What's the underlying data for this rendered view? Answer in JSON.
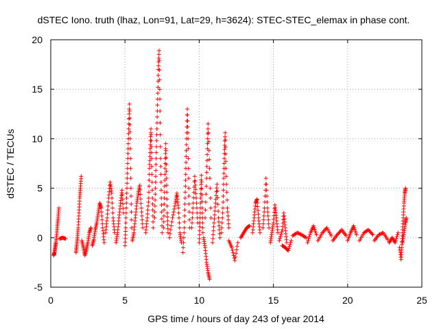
{
  "chart_data": {
    "type": "scatter",
    "title": "dSTEC Iono. truth (lhaz, Lon=91, Lat=29, h=3624): STEC-STEC_elemax in phase cont.",
    "xlabel": "GPS time / hours of day 243 of year 2014",
    "ylabel": "dSTEC  / TECUs",
    "xlim": [
      0,
      25
    ],
    "ylim": [
      -5,
      20
    ],
    "x_ticks": [
      0,
      5,
      10,
      15,
      20,
      25
    ],
    "y_ticks": [
      -5,
      0,
      5,
      10,
      15,
      20
    ],
    "x_tick_labels": [
      "0",
      "5",
      "10",
      "15",
      "20",
      "25"
    ],
    "y_tick_labels": [
      "-5",
      "0",
      "5",
      "10",
      "15",
      "20"
    ],
    "grid": true,
    "marker": "+",
    "color": "#ff0000",
    "series": [
      {
        "name": "arc01",
        "points": [
          [
            0.2,
            -1.8
          ],
          [
            0.25,
            -1.5
          ],
          [
            0.3,
            -1.0
          ],
          [
            0.35,
            -0.5
          ],
          [
            0.4,
            0.3
          ],
          [
            0.45,
            1.2
          ],
          [
            0.5,
            2.0
          ],
          [
            0.55,
            3.0
          ]
        ]
      },
      {
        "name": "arc02",
        "points": [
          [
            0.6,
            -0.1
          ],
          [
            0.8,
            0.0
          ],
          [
            1.0,
            -0.1
          ]
        ]
      },
      {
        "name": "arc03",
        "points": [
          [
            1.7,
            -1.5
          ],
          [
            1.75,
            -0.8
          ],
          [
            1.8,
            0.0
          ],
          [
            1.85,
            1.0
          ],
          [
            1.9,
            2.5
          ],
          [
            1.95,
            4.0
          ],
          [
            2.0,
            5.0
          ],
          [
            2.05,
            6.2
          ]
        ]
      },
      {
        "name": "arc04",
        "points": [
          [
            2.1,
            -0.3
          ],
          [
            2.2,
            -1.0
          ],
          [
            2.3,
            -1.8
          ],
          [
            2.4,
            -1.2
          ],
          [
            2.5,
            -0.5
          ],
          [
            2.6,
            0.5
          ],
          [
            2.7,
            1.0
          ]
        ]
      },
      {
        "name": "arc05",
        "points": [
          [
            2.8,
            -0.8
          ],
          [
            2.9,
            -0.2
          ],
          [
            3.0,
            0.8
          ],
          [
            3.1,
            1.5
          ],
          [
            3.2,
            2.5
          ],
          [
            3.3,
            3.5
          ],
          [
            3.4,
            3.0
          ],
          [
            3.5,
            1.0
          ],
          [
            3.6,
            -0.5
          ]
        ]
      },
      {
        "name": "arc06",
        "points": [
          [
            3.7,
            0.5
          ],
          [
            3.8,
            2.0
          ],
          [
            3.9,
            4.0
          ],
          [
            4.0,
            5.6
          ],
          [
            4.1,
            4.5
          ],
          [
            4.2,
            2.0
          ],
          [
            4.3,
            0.5
          ]
        ]
      },
      {
        "name": "arc07",
        "points": [
          [
            4.4,
            -0.5
          ],
          [
            4.5,
            0.5
          ],
          [
            4.6,
            2.0
          ],
          [
            4.7,
            3.5
          ],
          [
            4.8,
            4.8
          ],
          [
            4.9,
            2.5
          ]
        ]
      },
      {
        "name": "arc08",
        "points": [
          [
            5.0,
            -0.8
          ],
          [
            5.05,
            1.0
          ],
          [
            5.1,
            3.5
          ],
          [
            5.15,
            6.0
          ],
          [
            5.2,
            8.5
          ],
          [
            5.25,
            11.0
          ],
          [
            5.3,
            13.5
          ],
          [
            5.35,
            10.0
          ],
          [
            5.4,
            5.0
          ],
          [
            5.45,
            1.0
          ]
        ]
      },
      {
        "name": "arc09",
        "points": [
          [
            5.5,
            -0.3
          ],
          [
            5.6,
            0.5
          ],
          [
            5.7,
            2.0
          ],
          [
            5.8,
            3.5
          ],
          [
            5.9,
            4.5
          ],
          [
            6.0,
            5.3
          ],
          [
            6.1,
            3.0
          ],
          [
            6.2,
            1.0
          ]
        ]
      },
      {
        "name": "arc10",
        "points": [
          [
            6.4,
            0.5
          ],
          [
            6.5,
            2.0
          ],
          [
            6.6,
            4.0
          ],
          [
            6.65,
            7.0
          ],
          [
            6.7,
            9.0
          ],
          [
            6.75,
            11.0
          ],
          [
            6.8,
            8.0
          ],
          [
            6.85,
            4.0
          ],
          [
            6.9,
            1.0
          ]
        ]
      },
      {
        "name": "arc11",
        "points": [
          [
            7.0,
            2.0
          ],
          [
            7.05,
            5.0
          ],
          [
            7.1,
            8.0
          ],
          [
            7.15,
            11.0
          ],
          [
            7.2,
            14.0
          ],
          [
            7.25,
            17.0
          ],
          [
            7.3,
            18.9
          ],
          [
            7.35,
            14.0
          ],
          [
            7.4,
            8.0
          ],
          [
            7.45,
            4.0
          ],
          [
            7.5,
            0.5
          ]
        ]
      },
      {
        "name": "arc12",
        "points": [
          [
            7.6,
            1.0
          ],
          [
            7.65,
            4.0
          ],
          [
            7.7,
            7.0
          ],
          [
            7.75,
            9.5
          ],
          [
            7.8,
            6.0
          ],
          [
            7.85,
            2.5
          ],
          [
            7.9,
            0.5
          ]
        ]
      },
      {
        "name": "arc13",
        "points": [
          [
            8.0,
            0.0
          ],
          [
            8.2,
            2.0
          ],
          [
            8.4,
            3.5
          ],
          [
            8.5,
            4.5
          ],
          [
            8.6,
            3.0
          ],
          [
            8.7,
            0.5
          ],
          [
            8.8,
            -0.5
          ]
        ]
      },
      {
        "name": "arc14",
        "points": [
          [
            8.9,
            -1.5
          ],
          [
            9.0,
            1.0
          ],
          [
            9.05,
            4.0
          ],
          [
            9.1,
            7.0
          ],
          [
            9.15,
            10.0
          ],
          [
            9.2,
            13.0
          ],
          [
            9.25,
            10.0
          ],
          [
            9.3,
            5.0
          ],
          [
            9.35,
            1.0
          ]
        ]
      },
      {
        "name": "arc15",
        "points": [
          [
            9.5,
            1.0
          ],
          [
            9.6,
            3.5
          ],
          [
            9.7,
            6.2
          ],
          [
            9.8,
            4.0
          ],
          [
            9.9,
            1.5
          ]
        ]
      },
      {
        "name": "arc16",
        "points": [
          [
            10.0,
            -0.5
          ],
          [
            10.05,
            1.5
          ],
          [
            10.1,
            4.0
          ],
          [
            10.15,
            6.3
          ],
          [
            10.2,
            3.0
          ],
          [
            10.25,
            0.5
          ]
        ]
      },
      {
        "name": "arc17",
        "points": [
          [
            10.3,
            0.0
          ],
          [
            10.4,
            -1.0
          ],
          [
            10.5,
            -2.5
          ],
          [
            10.6,
            -3.5
          ],
          [
            10.7,
            -4.2
          ]
        ]
      },
      {
        "name": "arc18",
        "points": [
          [
            10.4,
            2.0
          ],
          [
            10.5,
            6.0
          ],
          [
            10.55,
            9.0
          ],
          [
            10.6,
            11.5
          ],
          [
            10.7,
            7.0
          ],
          [
            10.8,
            2.0
          ]
        ]
      },
      {
        "name": "arc19",
        "points": [
          [
            10.9,
            -0.5
          ],
          [
            11.0,
            1.5
          ],
          [
            11.1,
            3.5
          ],
          [
            11.2,
            5.4
          ],
          [
            11.3,
            2.0
          ],
          [
            11.4,
            0.0
          ]
        ]
      },
      {
        "name": "arc20",
        "points": [
          [
            11.5,
            0.5
          ],
          [
            11.6,
            3.0
          ],
          [
            11.65,
            6.0
          ],
          [
            11.7,
            8.5
          ],
          [
            11.75,
            10.6
          ],
          [
            11.8,
            7.0
          ],
          [
            11.9,
            3.0
          ],
          [
            12.0,
            1.0
          ]
        ]
      },
      {
        "name": "arc21",
        "points": [
          [
            12.0,
            -0.3
          ],
          [
            12.2,
            -1.0
          ],
          [
            12.4,
            -2.3
          ],
          [
            12.6,
            -0.5
          ]
        ]
      },
      {
        "name": "arc22",
        "points": [
          [
            12.8,
            0.0
          ],
          [
            13.0,
            0.5
          ],
          [
            13.2,
            1.0
          ],
          [
            13.4,
            1.2
          ]
        ]
      },
      {
        "name": "arc23",
        "points": [
          [
            13.6,
            0.5
          ],
          [
            13.7,
            2.0
          ],
          [
            13.8,
            3.5
          ],
          [
            13.9,
            3.9
          ],
          [
            14.0,
            2.0
          ],
          [
            14.1,
            0.5
          ]
        ]
      },
      {
        "name": "arc24",
        "points": [
          [
            14.3,
            1.0
          ],
          [
            14.4,
            3.0
          ],
          [
            14.5,
            6.0
          ],
          [
            14.6,
            3.0
          ],
          [
            14.7,
            1.0
          ]
        ]
      },
      {
        "name": "arc25",
        "points": [
          [
            14.8,
            -0.5
          ],
          [
            14.9,
            0.5
          ],
          [
            15.0,
            1.5
          ],
          [
            15.1,
            3.3
          ],
          [
            15.2,
            2.0
          ],
          [
            15.3,
            0.5
          ]
        ]
      },
      {
        "name": "arc26",
        "points": [
          [
            15.4,
            -0.3
          ],
          [
            15.6,
            0.8
          ],
          [
            15.7,
            2.5
          ],
          [
            15.8,
            1.0
          ],
          [
            15.9,
            -0.5
          ]
        ]
      },
      {
        "name": "arc27",
        "points": [
          [
            15.6,
            -0.8
          ],
          [
            15.8,
            -1.0
          ],
          [
            16.0,
            -1.3
          ],
          [
            16.2,
            -0.3
          ]
        ]
      },
      {
        "name": "arc28",
        "points": [
          [
            16.3,
            0.2
          ],
          [
            16.6,
            0.5
          ],
          [
            16.9,
            0.3
          ],
          [
            17.2,
            0.0
          ]
        ]
      },
      {
        "name": "arc29",
        "points": [
          [
            17.3,
            -0.5
          ],
          [
            17.5,
            0.5
          ],
          [
            17.7,
            1.2
          ],
          [
            17.9,
            0.3
          ]
        ]
      },
      {
        "name": "arc30",
        "points": [
          [
            18.0,
            -0.3
          ],
          [
            18.3,
            0.5
          ],
          [
            18.6,
            1.0
          ],
          [
            18.9,
            0.2
          ]
        ]
      },
      {
        "name": "arc31",
        "points": [
          [
            19.0,
            -0.3
          ],
          [
            19.3,
            0.3
          ],
          [
            19.6,
            0.8
          ],
          [
            19.9,
            0.2
          ]
        ]
      },
      {
        "name": "arc32",
        "points": [
          [
            20.0,
            -0.3
          ],
          [
            20.2,
            0.5
          ],
          [
            20.4,
            1.2
          ],
          [
            20.6,
            0.3
          ]
        ]
      },
      {
        "name": "arc33",
        "points": [
          [
            20.8,
            -0.3
          ],
          [
            21.1,
            0.5
          ],
          [
            21.4,
            0.8
          ],
          [
            21.7,
            0.3
          ]
        ]
      },
      {
        "name": "arc34",
        "points": [
          [
            21.8,
            -0.3
          ],
          [
            22.1,
            0.3
          ],
          [
            22.4,
            0.5
          ],
          [
            22.7,
            -0.2
          ]
        ]
      },
      {
        "name": "arc35",
        "points": [
          [
            22.8,
            -0.5
          ],
          [
            23.0,
            0.0
          ],
          [
            23.2,
            -0.5
          ],
          [
            23.4,
            0.5
          ]
        ]
      },
      {
        "name": "arc36",
        "points": [
          [
            23.5,
            -1.0
          ],
          [
            23.6,
            -2.2
          ],
          [
            23.65,
            -1.0
          ],
          [
            23.7,
            0.5
          ],
          [
            23.75,
            2.0
          ],
          [
            23.8,
            3.5
          ],
          [
            23.85,
            4.5
          ],
          [
            23.9,
            5.0
          ]
        ]
      },
      {
        "name": "arc37",
        "points": [
          [
            23.7,
            -0.5
          ],
          [
            23.8,
            0.5
          ],
          [
            23.9,
            1.5
          ],
          [
            23.95,
            2.0
          ]
        ]
      }
    ]
  }
}
